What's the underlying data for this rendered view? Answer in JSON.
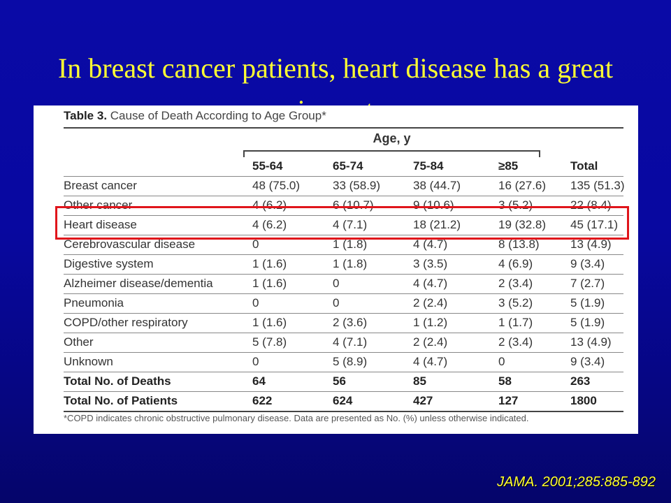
{
  "slide": {
    "title": "In breast cancer patients, heart disease has a great impact",
    "citation": "JAMA. 2001;285:885-892",
    "highlight_color": "#e0151b",
    "title_color": "#ffff33",
    "background_color": "#0808a0"
  },
  "table": {
    "label": "Table 3.",
    "caption": "Cause of Death According to Age Group*",
    "group_header": "Age, y",
    "columns": [
      "55-64",
      "65-74",
      "75-84",
      "≥85",
      "Total"
    ],
    "rows": [
      {
        "label": "Breast cancer",
        "cells": [
          "48 (75.0)",
          "33 (58.9)",
          "38 (44.7)",
          "16 (27.6)",
          "135 (51.3)"
        ]
      },
      {
        "label": "Other cancer",
        "cells": [
          "4 (6.2)",
          "6 (10.7)",
          "9 (10.6)",
          "3 (5.2)",
          "22 (8.4)"
        ]
      },
      {
        "label": "Heart disease",
        "cells": [
          "4 (6.2)",
          "4 (7.1)",
          "18 (21.2)",
          "19 (32.8)",
          "45 (17.1)"
        ]
      },
      {
        "label": "Cerebrovascular disease",
        "cells": [
          "0",
          "1 (1.8)",
          "4 (4.7)",
          "8 (13.8)",
          "13 (4.9)"
        ]
      },
      {
        "label": "Digestive system",
        "cells": [
          "1 (1.6)",
          "1 (1.8)",
          "3 (3.5)",
          "4 (6.9)",
          "9 (3.4)"
        ]
      },
      {
        "label": "Alzheimer disease/dementia",
        "cells": [
          "1 (1.6)",
          "0",
          "4 (4.7)",
          "2 (3.4)",
          "7 (2.7)"
        ]
      },
      {
        "label": "Pneumonia",
        "cells": [
          "0",
          "0",
          "2 (2.4)",
          "3 (5.2)",
          "5 (1.9)"
        ]
      },
      {
        "label": "COPD/other respiratory",
        "cells": [
          "1 (1.6)",
          "2 (3.6)",
          "1 (1.2)",
          "1 (1.7)",
          "5 (1.9)"
        ]
      },
      {
        "label": "Other",
        "cells": [
          "5 (7.8)",
          "4 (7.1)",
          "2 (2.4)",
          "2 (3.4)",
          "13 (4.9)"
        ]
      },
      {
        "label": "Unknown",
        "cells": [
          "0",
          "5 (8.9)",
          "4 (4.7)",
          "0",
          "9 (3.4)"
        ]
      }
    ],
    "totals": [
      {
        "label": "Total No. of Deaths",
        "cells": [
          "64",
          "56",
          "85",
          "58",
          "263"
        ]
      },
      {
        "label": "Total No. of Patients",
        "cells": [
          "622",
          "624",
          "427",
          "127",
          "1800"
        ]
      }
    ],
    "footnote": "*COPD indicates chronic obstructive pulmonary disease. Data are presented as No. (%) unless otherwise indicated."
  }
}
